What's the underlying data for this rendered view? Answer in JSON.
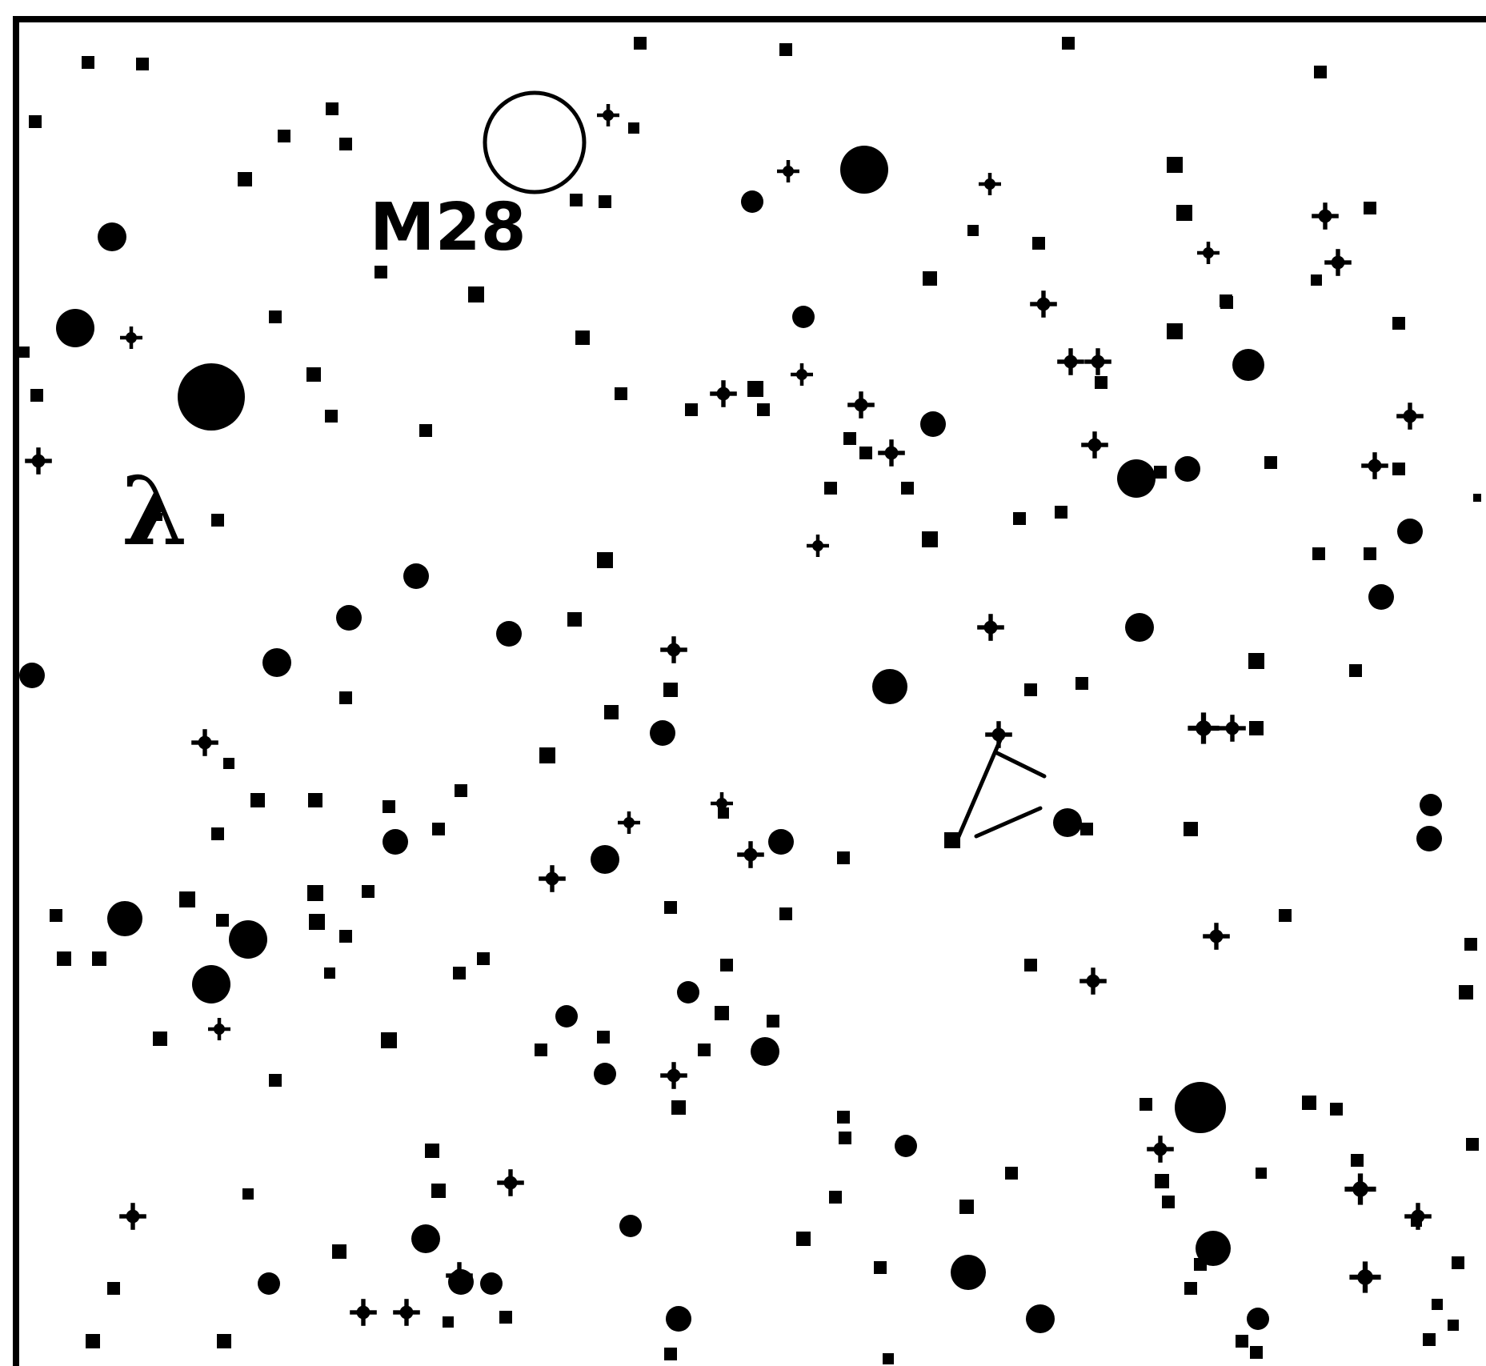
{
  "chart": {
    "ink_color": "#000000",
    "background_color": "#ffffff",
    "labels": {
      "m28": "M28",
      "lambda": "λ"
    }
  }
}
